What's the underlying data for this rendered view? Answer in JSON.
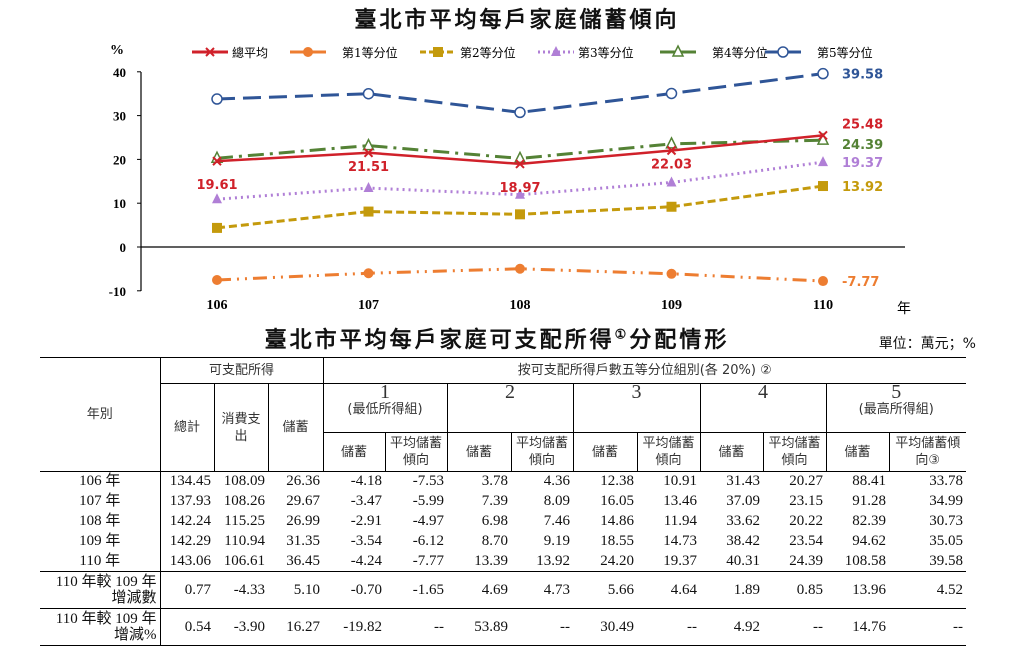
{
  "chart_title": "臺北市平均每戶家庭儲蓄傾向",
  "chart_data": {
    "type": "line",
    "title": "臺北市平均每戶家庭儲蓄傾向",
    "ylabel": "%",
    "xlabel": "年",
    "categories": [
      "106",
      "107",
      "108",
      "109",
      "110"
    ],
    "ylim": [
      -10,
      40
    ],
    "yticks": [
      "40",
      "30",
      "20",
      "10",
      "0",
      "-10"
    ],
    "grid": false,
    "legend": "top",
    "series": [
      {
        "name": "總平均",
        "values": [
          19.61,
          21.51,
          18.97,
          22.03,
          25.48
        ],
        "color": "#d0212a",
        "marker": "x",
        "dash": "solid",
        "labels": [
          "19.61",
          "21.51",
          "18.97",
          "22.03",
          "25.48"
        ]
      },
      {
        "name": "第1等分位",
        "values": [
          -7.53,
          -5.99,
          -4.97,
          -6.12,
          -7.77
        ],
        "color": "#ed7d31",
        "marker": "circle",
        "dash": "dashdotdot",
        "labels": [
          "",
          "",
          "",
          "",
          "-7.77"
        ]
      },
      {
        "name": "第2等分位",
        "values": [
          4.36,
          8.09,
          7.46,
          9.19,
          13.92
        ],
        "color": "#c49a0c",
        "marker": "square",
        "dash": "dash",
        "labels": [
          "",
          "",
          "",
          "",
          "13.92"
        ]
      },
      {
        "name": "第3等分位",
        "values": [
          10.91,
          13.46,
          11.94,
          14.73,
          19.37
        ],
        "color": "#b07fd6",
        "marker": "triangle",
        "dash": "dot",
        "labels": [
          "",
          "",
          "",
          "",
          "19.37"
        ]
      },
      {
        "name": "第4等分位",
        "values": [
          20.27,
          23.15,
          20.22,
          23.54,
          24.39
        ],
        "color": "#548235",
        "marker": "triangle-open",
        "dash": "dashdot",
        "labels": [
          "",
          "",
          "",
          "",
          "24.39"
        ]
      },
      {
        "name": "第5等分位",
        "values": [
          33.78,
          34.99,
          30.73,
          35.05,
          39.58
        ],
        "color": "#2f5597",
        "marker": "circle-open",
        "dash": "longdash",
        "labels": [
          "",
          "",
          "",
          "",
          "39.58"
        ]
      }
    ]
  },
  "table_title": "臺北市平均每戶家庭可支配所得",
  "table_title_sup": "①",
  "table_title_suffix": "分配情形",
  "unit": "單位：萬元；%",
  "table": {
    "h_year": "年別",
    "h_disposable": "可支配所得",
    "h_quintile": "按可支配所得戶數五等分位組別(各 20%) ②",
    "h_total": "總計",
    "h_consume": "消費支出",
    "h_saving": "儲蓄",
    "groups": [
      {
        "num": "1",
        "sub": "(最低所得組)"
      },
      {
        "num": "2",
        "sub": ""
      },
      {
        "num": "3",
        "sub": ""
      },
      {
        "num": "4",
        "sub": ""
      },
      {
        "num": "5",
        "sub": "(最高所得組)"
      }
    ],
    "sub_saving": "儲蓄",
    "sub_prop": "平均儲蓄傾向",
    "sub_prop_last": "平均儲蓄傾向③",
    "rows": [
      {
        "label": "106 年",
        "values": [
          "134.45",
          "108.09",
          "26.36",
          "-4.18",
          "-7.53",
          "3.78",
          "4.36",
          "12.38",
          "10.91",
          "31.43",
          "20.27",
          "88.41",
          "33.78"
        ]
      },
      {
        "label": "107 年",
        "values": [
          "137.93",
          "108.26",
          "29.67",
          "-3.47",
          "-5.99",
          "7.39",
          "8.09",
          "16.05",
          "13.46",
          "37.09",
          "23.15",
          "91.28",
          "34.99"
        ]
      },
      {
        "label": "108 年",
        "values": [
          "142.24",
          "115.25",
          "26.99",
          "-2.91",
          "-4.97",
          "6.98",
          "7.46",
          "14.86",
          "11.94",
          "33.62",
          "20.22",
          "82.39",
          "30.73"
        ]
      },
      {
        "label": "109 年",
        "values": [
          "142.29",
          "110.94",
          "31.35",
          "-3.54",
          "-6.12",
          "8.70",
          "9.19",
          "18.55",
          "14.73",
          "38.42",
          "23.54",
          "94.62",
          "35.05"
        ]
      },
      {
        "label": "110 年",
        "values": [
          "143.06",
          "106.61",
          "36.45",
          "-4.24",
          "-7.77",
          "13.39",
          "13.92",
          "24.20",
          "19.37",
          "40.31",
          "24.39",
          "108.58",
          "39.58"
        ]
      }
    ],
    "diff_rows": [
      {
        "label1": "110 年較 109 年",
        "label2": "增減數",
        "values": [
          "0.77",
          "-4.33",
          "5.10",
          "-0.70",
          "-1.65",
          "4.69",
          "4.73",
          "5.66",
          "4.64",
          "1.89",
          "0.85",
          "13.96",
          "4.52"
        ]
      },
      {
        "label1": "110 年較 109 年",
        "label2": "增減%",
        "values": [
          "0.54",
          "-3.90",
          "16.27",
          "-19.82",
          "--",
          "53.89",
          "--",
          "30.49",
          "--",
          "4.92",
          "--",
          "14.76",
          "--"
        ]
      }
    ]
  }
}
